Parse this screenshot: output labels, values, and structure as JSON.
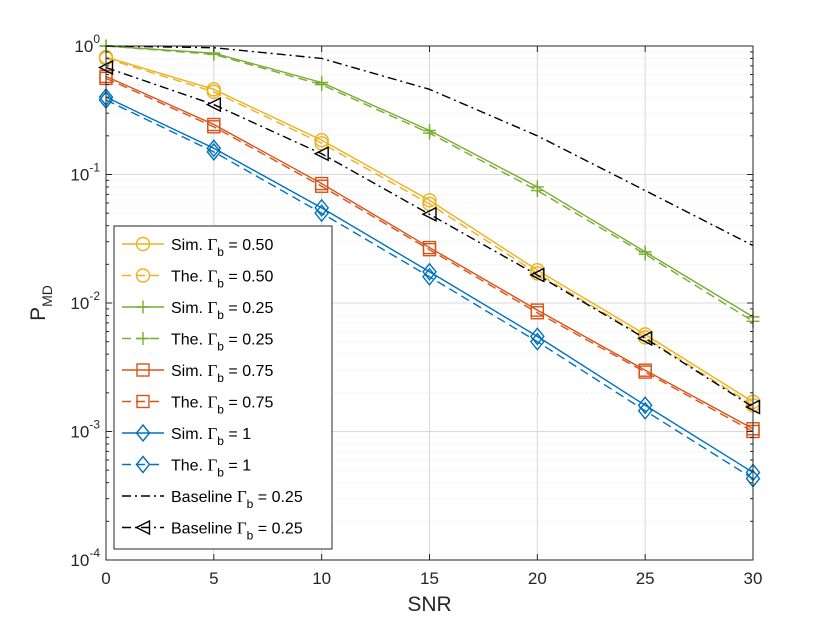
{
  "chart_data": {
    "type": "line",
    "title": "",
    "xlabel": "SNR",
    "ylabel": "P",
    "ylabel_subscript": "MD",
    "yscale": "log",
    "grid": true,
    "legend_location": "bottom-left",
    "xlim": [
      0,
      30
    ],
    "ylim": [
      0.0001,
      1
    ],
    "x": [
      0,
      5,
      10,
      15,
      20,
      25,
      30
    ],
    "xticks": [
      {
        "value": 0,
        "label": "0"
      },
      {
        "value": 5,
        "label": "5"
      },
      {
        "value": 10,
        "label": "10"
      },
      {
        "value": 15,
        "label": "15"
      },
      {
        "value": 20,
        "label": "20"
      },
      {
        "value": 25,
        "label": "25"
      },
      {
        "value": 30,
        "label": "30"
      }
    ],
    "yticks": [
      {
        "value": 1,
        "base": "10",
        "exp": "0"
      },
      {
        "value": 0.1,
        "base": "10",
        "exp": "-1"
      },
      {
        "value": 0.01,
        "base": "10",
        "exp": "-2"
      },
      {
        "value": 0.001,
        "base": "10",
        "exp": "-3"
      },
      {
        "value": 0.0001,
        "base": "10",
        "exp": "-4"
      }
    ],
    "series": [
      {
        "legend_prefix": "Sim. ",
        "gamma_symbol": "Γ",
        "sub": "b",
        "legend_value": " = 0.50",
        "color": "#EDB120",
        "dash": "solid",
        "marker": "circle",
        "values": [
          0.82,
          0.46,
          0.185,
          0.063,
          0.018,
          0.0057,
          0.0017
        ]
      },
      {
        "legend_prefix": "The. ",
        "gamma_symbol": "Γ",
        "sub": "b",
        "legend_value": " = 0.50",
        "color": "#EDB120",
        "dash": "dashed",
        "marker": "circle",
        "values": [
          0.8,
          0.44,
          0.175,
          0.059,
          0.017,
          0.0054,
          0.0016
        ]
      },
      {
        "legend_prefix": "Sim. ",
        "gamma_symbol": "Γ",
        "sub": "b",
        "legend_value": " = 0.25",
        "color": "#77AC30",
        "dash": "solid",
        "marker": "plus",
        "values": [
          1.0,
          0.88,
          0.52,
          0.22,
          0.08,
          0.025,
          0.0078
        ]
      },
      {
        "legend_prefix": "The. ",
        "gamma_symbol": "Γ",
        "sub": "b",
        "legend_value": " = 0.25",
        "color": "#77AC30",
        "dash": "dashed",
        "marker": "plus",
        "values": [
          1.0,
          0.86,
          0.5,
          0.21,
          0.075,
          0.024,
          0.0072
        ]
      },
      {
        "legend_prefix": "Sim. ",
        "gamma_symbol": "Γ",
        "sub": "b",
        "legend_value": " = 0.75",
        "color": "#D95319",
        "dash": "solid",
        "marker": "square",
        "values": [
          0.58,
          0.245,
          0.085,
          0.027,
          0.0088,
          0.003,
          0.00105
        ]
      },
      {
        "legend_prefix": "The. ",
        "gamma_symbol": "Γ",
        "sub": "b",
        "legend_value": " = 0.75",
        "color": "#D95319",
        "dash": "dashed",
        "marker": "square",
        "values": [
          0.56,
          0.235,
          0.081,
          0.026,
          0.0084,
          0.0029,
          0.001
        ]
      },
      {
        "legend_prefix": "Sim. ",
        "gamma_symbol": "Γ",
        "sub": "b",
        "legend_value": " = 1",
        "color": "#0072BD",
        "dash": "solid",
        "marker": "diamond",
        "values": [
          0.4,
          0.16,
          0.055,
          0.0175,
          0.0055,
          0.0016,
          0.00048
        ]
      },
      {
        "legend_prefix": "The. ",
        "gamma_symbol": "Γ",
        "sub": "b",
        "legend_value": " = 1",
        "color": "#0072BD",
        "dash": "dashed",
        "marker": "diamond",
        "values": [
          0.38,
          0.15,
          0.05,
          0.016,
          0.005,
          0.00145,
          0.00043
        ]
      },
      {
        "legend_prefix": "Baseline ",
        "gamma_symbol": "Γ",
        "sub": "b",
        "legend_value": " = 0.25",
        "color": "#000000",
        "dash": "dashdot",
        "marker": "none",
        "values": [
          1.0,
          0.97,
          0.8,
          0.46,
          0.2,
          0.075,
          0.028
        ]
      },
      {
        "legend_prefix": "Baseline ",
        "gamma_symbol": "Γ",
        "sub": "b",
        "legend_value": " = 0.25",
        "color": "#000000",
        "dash": "dashdot",
        "marker": "triangle-left",
        "values": [
          0.68,
          0.35,
          0.145,
          0.049,
          0.0165,
          0.0053,
          0.00155
        ]
      }
    ]
  }
}
